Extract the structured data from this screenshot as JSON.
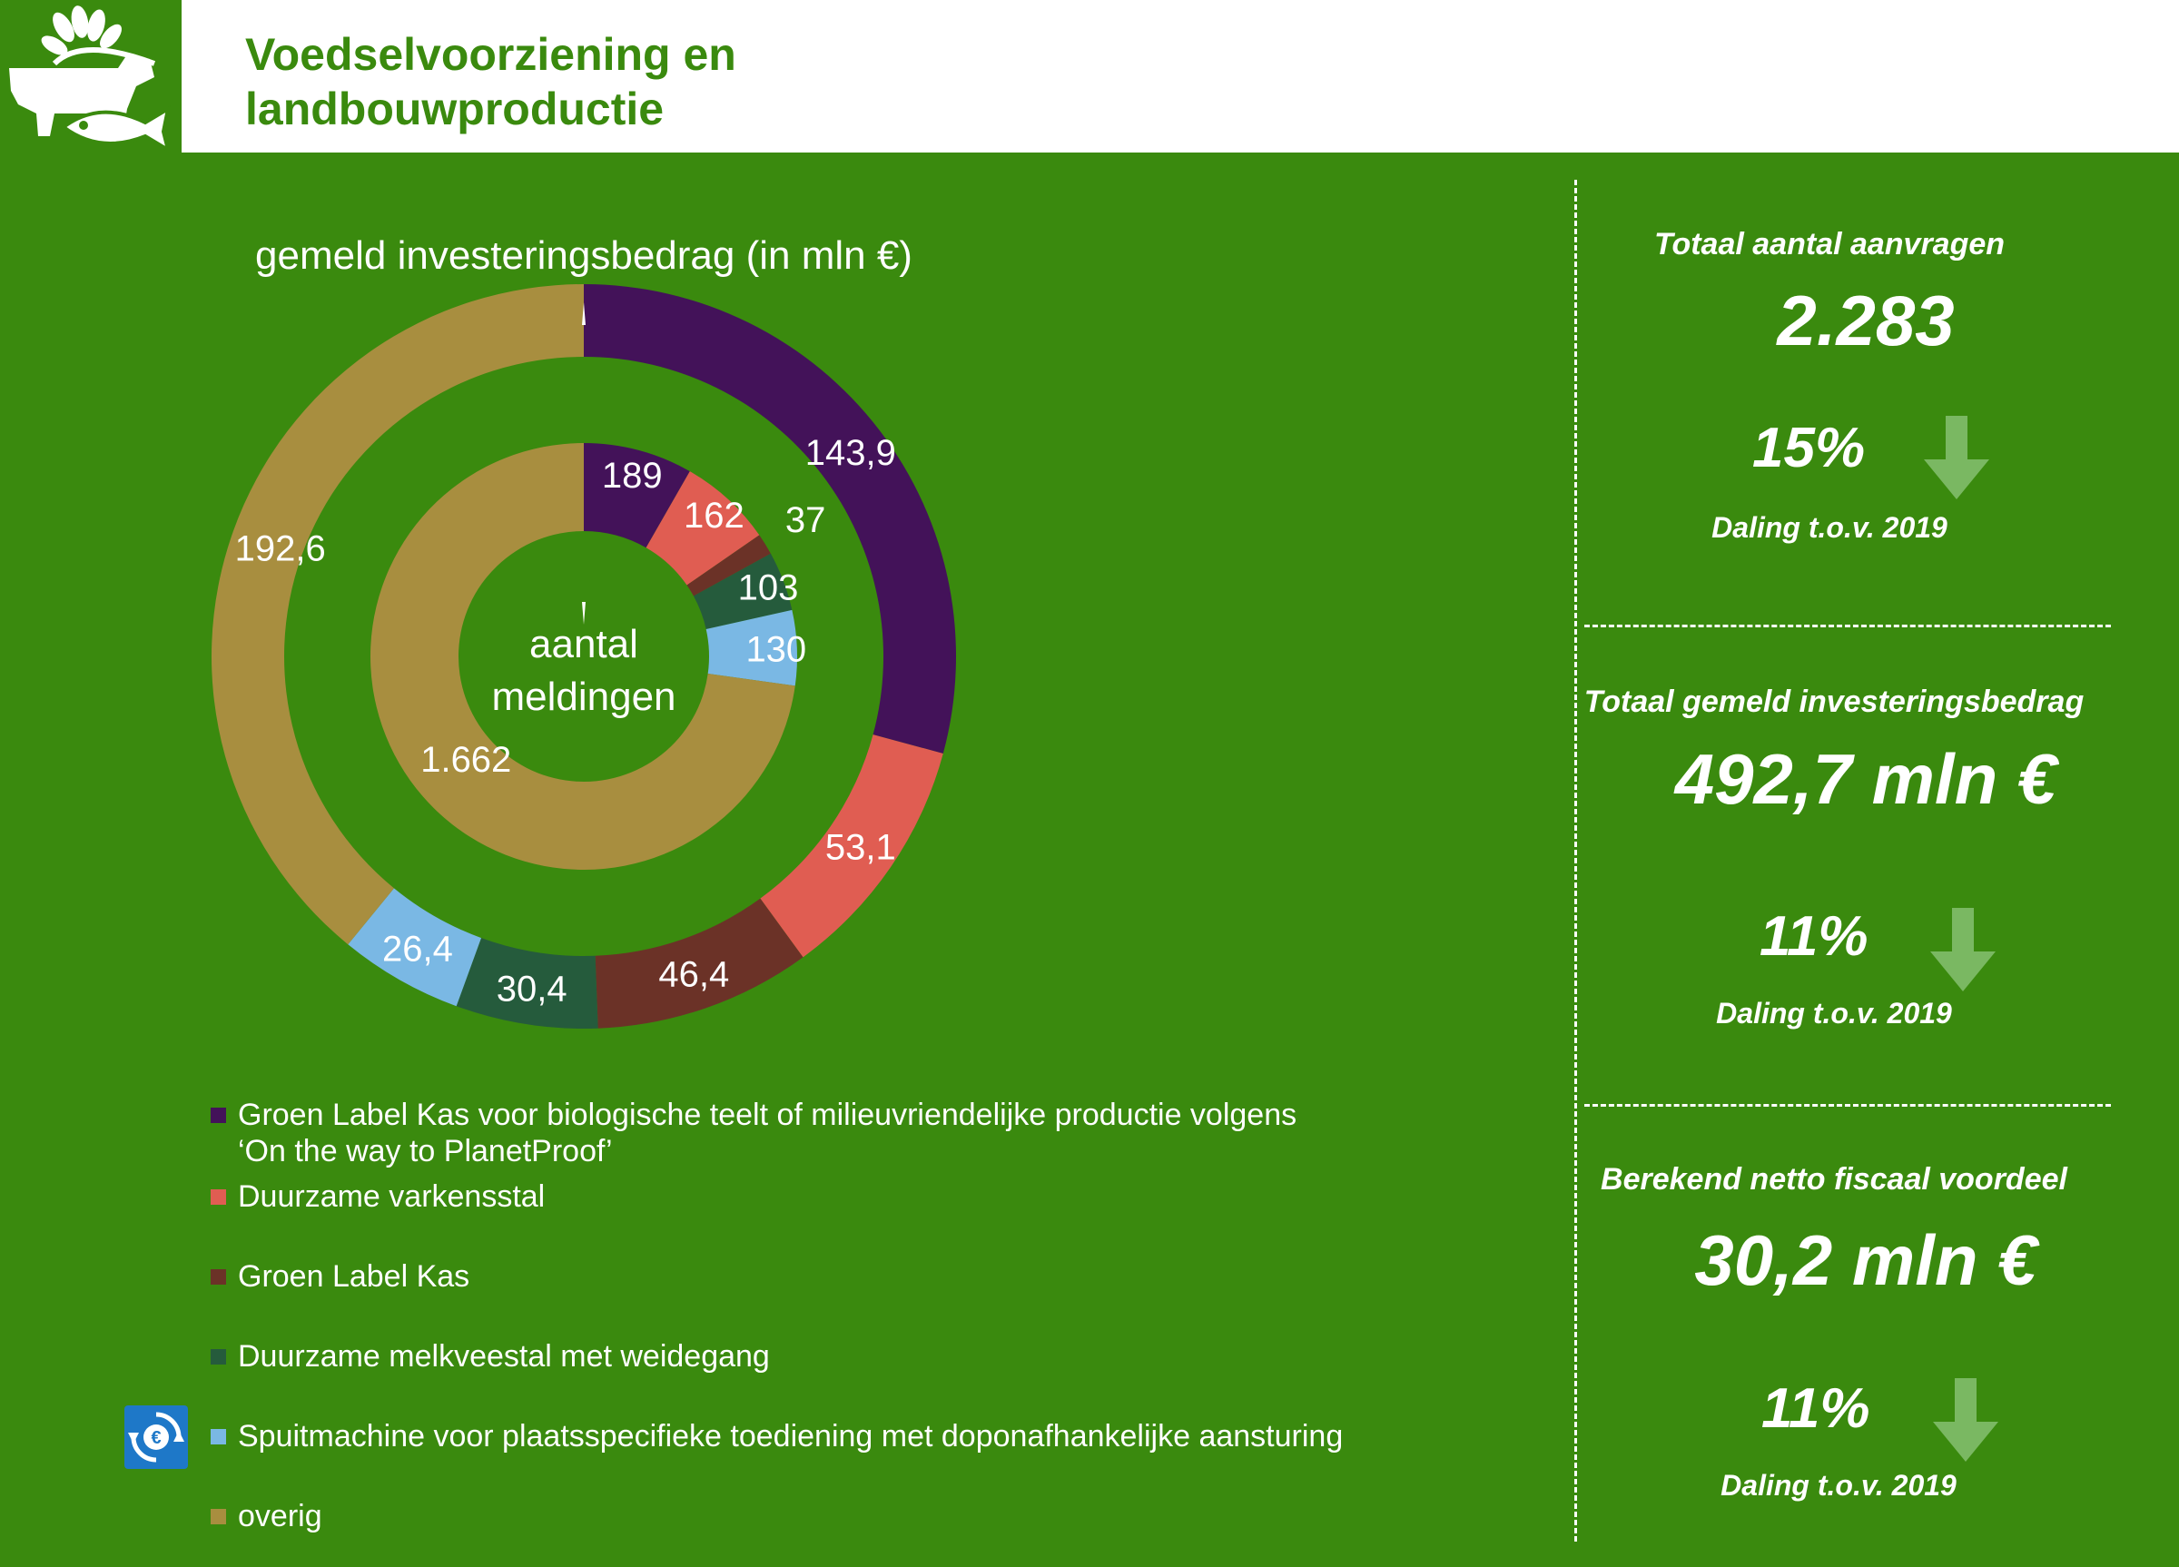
{
  "header": {
    "title_line1": "Voedselvoorziening en",
    "title_line2": "landbouwproductie"
  },
  "colors": {
    "background_green": "#3a8a0e",
    "title_green": "#3a8a0e",
    "arrow_green": "#7ab862"
  },
  "icons": {
    "logo": "agriculture-cow-fish-wheat-icon",
    "legend": "euro-cycle-icon",
    "trend": "arrow-down-icon"
  },
  "chart_data": {
    "type": "donut",
    "title": "gemeld investeringsbedrag (in mln €)",
    "center_label": [
      "aantal",
      "meldingen"
    ],
    "categories": [
      "Groen Label Kas voor biologische teelt of milieuvriendelijke productie volgens ‘On the way to PlanetProof’",
      "Duurzame varkensstal",
      "Groen Label Kas",
      "Duurzame melkveestal met weidegang",
      "Spuitmachine voor plaatsspecifieke toediening met doponafhankelijke aansturing",
      "overig"
    ],
    "colors": [
      "#431259",
      "#e05d52",
      "#6b3227",
      "#255b3c",
      "#7ab8e4",
      "#a88e3f"
    ],
    "series": [
      {
        "ring": "outer",
        "values": [
          143.9,
          53.1,
          46.4,
          30.4,
          26.4,
          192.6
        ],
        "labels": [
          "143,9",
          "53,1",
          "46,4",
          "30,4",
          "26,4",
          "192,6"
        ]
      },
      {
        "ring": "inner",
        "values": [
          189,
          162,
          37,
          103,
          130,
          1662
        ],
        "labels": [
          "189",
          "162",
          "37",
          "103",
          "130",
          "1.662"
        ]
      }
    ]
  },
  "legend": {
    "items": [
      {
        "line1": "Groen Label Kas voor biologische teelt of milieuvriendelijke productie volgens",
        "line2": "‘On the way to PlanetProof’"
      },
      {
        "line1": "Duurzame varkensstal"
      },
      {
        "line1": "Groen Label Kas"
      },
      {
        "line1": "Duurzame melkveestal met weidegang"
      },
      {
        "line1": "Spuitmachine voor plaatsspecifieke toediening met doponafhankelijke aansturing"
      },
      {
        "line1": "overig"
      }
    ]
  },
  "stats": [
    {
      "label": "Totaal aantal aanvragen",
      "value": "2.283",
      "pct": "15%",
      "sub": "Daling t.o.v. 2019"
    },
    {
      "label": "Totaal gemeld investeringsbedrag",
      "value": "492,7 mln €",
      "pct": "11%",
      "sub": "Daling t.o.v. 2019"
    },
    {
      "label": "Berekend netto fiscaal voordeel",
      "value": "30,2 mln €",
      "pct": "11%",
      "sub": "Daling t.o.v. 2019"
    }
  ]
}
